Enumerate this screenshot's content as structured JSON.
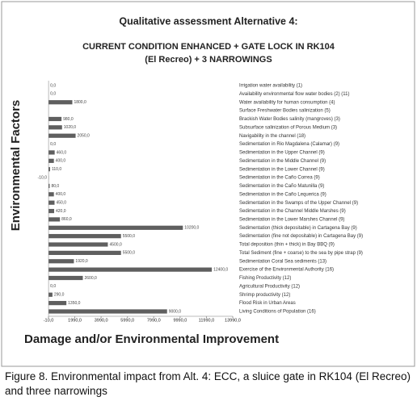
{
  "chart_data": {
    "type": "bar",
    "orientation": "horizontal",
    "title": "Qualitative assessment Alternative 4:",
    "subtitle": [
      "CURRENT CONDITION ENHANCED + GATE LOCK IN RK104",
      "(El Recreo) + 3 NARROWINGS"
    ],
    "y_label": "Environmental Factors",
    "x_label": "Damage and/or Environmental Improvement",
    "caption": "Figure 8. Environmental impact from Alt. 4: ECC, a sluice gate in RK104 (El Recreo) and three narrowings",
    "categories": [
      "Irrigation water availability (1)",
      "Availability environmental flow water bodies (2) (11)",
      "Water availability for human consumption (4)",
      "Surface Freshwater Bodies salinization (5)",
      "Brackish Water Bodies salinity (mangroves) (3)",
      "Subsurface salinization of Porous Medium (3)",
      "Navigability in the channel (18)",
      "Sedimentation in Rio Magdalena (Calamar) (9)",
      "Sedimentation in the Upper Channel (9)",
      "Sedimentation in the Middle Channel (9)",
      "Sedimentation in the Lower Channel (9)",
      "Sedimentation in the Caño Correa (9)",
      "Sedimentation in the Caño Matunilla (9)",
      "Sedimentation in the Caño Lequerica (9)",
      "Sedimentation in the Swamps of the Upper Channel (9)",
      "Sedimentation in the Channel Middle Marshes (9)",
      "Sedimentation in the Lower Marshes Channel (9)",
      "Sedimentation (thick depositable) in Cartagena Bay (9)",
      "Sedimentation (fine not depositable) in Cartagena Bay (9)",
      "Total deposition (thin + thick) in Bay BBQ (9)",
      "Total Sediment (fine + coarse) to the sea by pipe strap (9)",
      "Sedimentation Coral Sea sediments (13)",
      "Exercise of the Environmental Authority (16)",
      "Fishing Productivity (12)",
      "Agricultural Productivity (12)",
      "Shrimp productivity (12)",
      "Flood Risk in Urban Areas",
      "Living Conditions of Population (16)"
    ],
    "values": [
      0,
      0,
      1800,
      null,
      980,
      1020,
      2050,
      0,
      460,
      400,
      110,
      -10,
      80,
      400,
      450,
      420,
      860,
      10200,
      5500,
      4500,
      5500,
      1920,
      12400,
      2600,
      0,
      290,
      1350,
      9000
    ],
    "value_labels": [
      "0,0",
      "0,0",
      "1800,0",
      null,
      "980,0",
      "1020,0",
      "2050,0",
      "0,0",
      "460,0",
      "400,0",
      "110,0",
      "-10,0",
      "80,0",
      "400,0",
      "450,0",
      "420,0",
      "860,0",
      "10200,0",
      "5500,0",
      "4500,0",
      "5500,0",
      "1920,0",
      "12400,0",
      "2600,0",
      "0,0",
      "290,0",
      "1350,0",
      "9000,0"
    ],
    "color": "#5f5f5f",
    "xlim": [
      -10,
      13990
    ],
    "xticks": [
      {
        "value": -10,
        "label": "-10,0"
      },
      {
        "value": 1990,
        "label": "1990,0"
      },
      {
        "value": 3990,
        "label": "3990,0"
      },
      {
        "value": 5990,
        "label": "5990,0"
      },
      {
        "value": 7990,
        "label": "7990,0"
      },
      {
        "value": 9990,
        "label": "9990,0"
      },
      {
        "value": 11990,
        "label": "11990,0"
      },
      {
        "value": 13990,
        "label": "13990,0"
      }
    ],
    "grid": false
  }
}
